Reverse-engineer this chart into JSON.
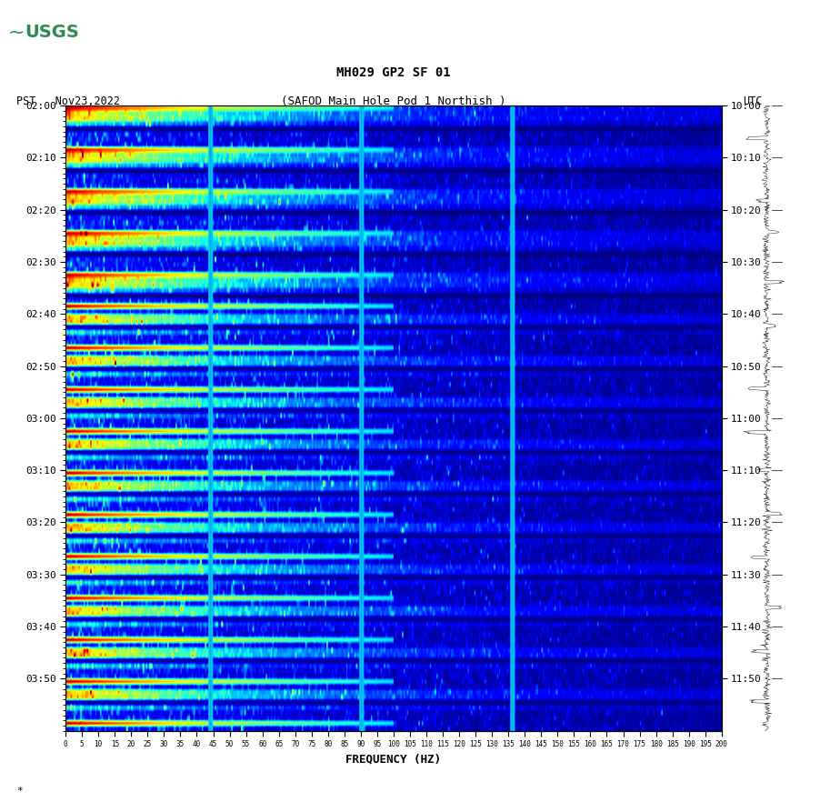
{
  "title_line1": "MH029 GP2 SF 01",
  "title_line2": "(SAFOD Main Hole Pod 1 Northish )",
  "left_label": "PST   Nov23,2022",
  "right_label": "UTC",
  "freq_label": "FREQUENCY (HZ)",
  "left_yticks": [
    "02:00",
    "02:10",
    "02:20",
    "02:30",
    "02:40",
    "02:50",
    "03:00",
    "03:10",
    "03:20",
    "03:30",
    "03:40",
    "03:50"
  ],
  "right_yticks": [
    "10:00",
    "10:10",
    "10:20",
    "10:30",
    "10:40",
    "10:50",
    "11:00",
    "11:10",
    "11:20",
    "11:30",
    "11:40",
    "11:50"
  ],
  "xtick_labels": [
    "0",
    "5",
    "10",
    "15",
    "20",
    "25",
    "30",
    "35",
    "40",
    "45",
    "50",
    "55",
    "60",
    "65",
    "70",
    "75",
    "80",
    "85",
    "90",
    "95",
    "100",
    "105",
    "110",
    "115",
    "120",
    "125",
    "130",
    "135",
    "140",
    "145",
    "150",
    "155",
    "160",
    "165",
    "170",
    "175",
    "180",
    "185",
    "190",
    "195",
    "200"
  ],
  "freq_min": 0,
  "freq_max": 200,
  "n_time_rows": 120,
  "n_freq_cols": 400,
  "background_color": "#ffffff",
  "usgs_logo_color": "#2e8b57",
  "colormap": "jet",
  "vline_positions": [
    0.22,
    0.45,
    0.68
  ],
  "vline_color": "#00aaaa"
}
